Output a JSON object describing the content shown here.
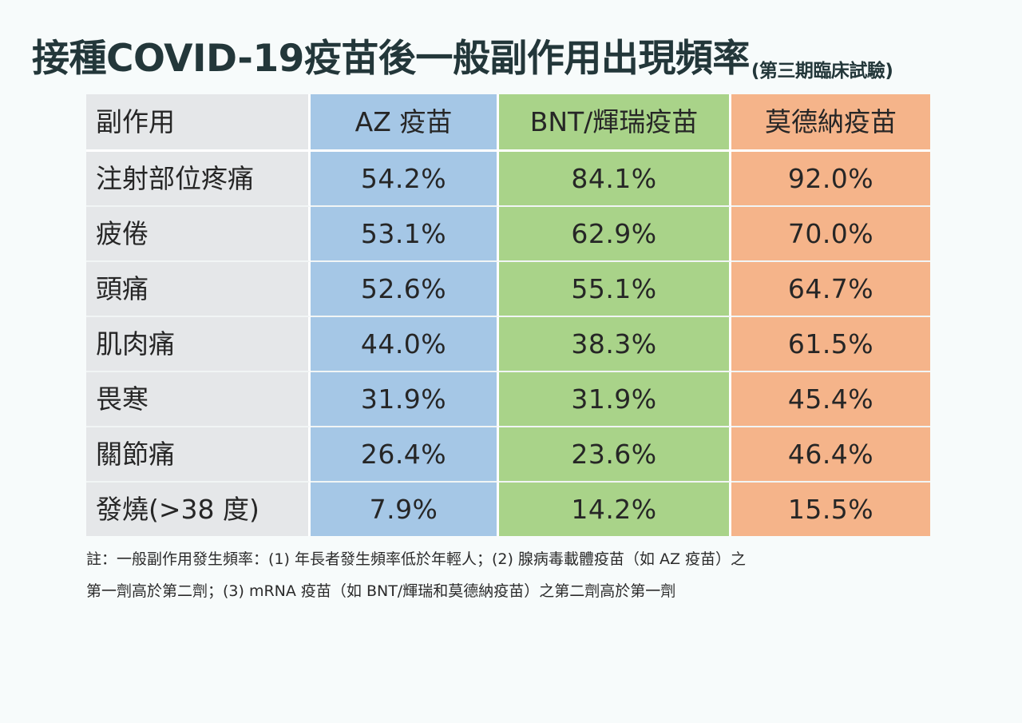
{
  "title": {
    "main": "接種COVID-19疫苗後一般副作用出現頻率",
    "sub": "(第三期臨床試驗)"
  },
  "table": {
    "headers": [
      "副作用",
      "AZ 疫苗",
      "BNT/輝瑞疫苗",
      "莫德納疫苗"
    ],
    "rows": [
      [
        "注射部位疼痛",
        "54.2%",
        "84.1%",
        "92.0%"
      ],
      [
        "疲倦",
        "53.1%",
        "62.9%",
        "70.0%"
      ],
      [
        "頭痛",
        "52.6%",
        "55.1%",
        "64.7%"
      ],
      [
        "肌肉痛",
        "44.0%",
        "38.3%",
        "61.5%"
      ],
      [
        "畏寒",
        "31.9%",
        "31.9%",
        "45.4%"
      ],
      [
        "關節痛",
        "26.4%",
        "23.6%",
        "46.4%"
      ],
      [
        "發燒(>38 度)",
        "7.9%",
        "14.2%",
        "15.5%"
      ]
    ]
  },
  "note": {
    "line1": "註：一般副作用發生頻率：(1) 年長者發生頻率低於年輕人；(2) 腺病毒載體疫苗（如 AZ 疫苗）之",
    "line2": "第一劑高於第二劑；(3) mRNA 疫苗（如 BNT/輝瑞和莫德納疫苗）之第二劑高於第一劑"
  },
  "colors": {
    "title": "#23373a",
    "label_column": "#e5e7e9",
    "az_column": "#a5c7e6",
    "bnt_column": "#a9d389",
    "moderna_column": "#f5b48a",
    "background": "#f7fbfb"
  }
}
